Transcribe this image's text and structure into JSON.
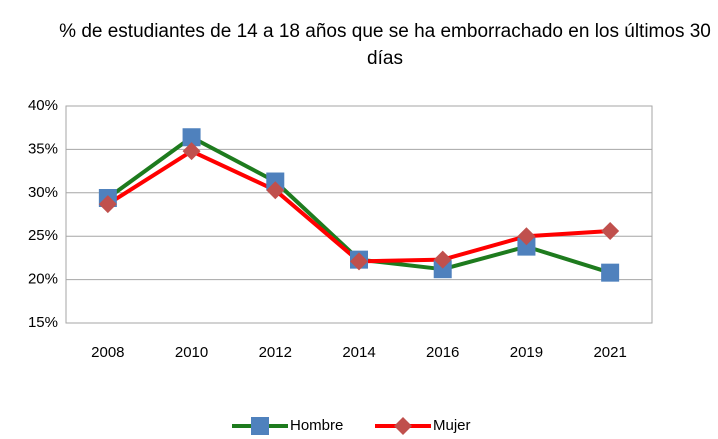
{
  "chart_data": {
    "type": "line",
    "title": "% de estudiantes de 14 a 18 años que se ha emborrachado en los últimos 30 días",
    "categories": [
      "2008",
      "2010",
      "2012",
      "2014",
      "2016",
      "2019",
      "2021"
    ],
    "series": [
      {
        "name": "Hombre",
        "color": "#1e7b1e",
        "marker_color": "#4f81bd",
        "marker": "square",
        "values": [
          29.4,
          36.4,
          31.3,
          22.3,
          21.2,
          23.8,
          20.8
        ]
      },
      {
        "name": "Mujer",
        "color": "#ff0000",
        "marker_color": "#c0504d",
        "marker": "diamond",
        "values": [
          28.7,
          34.8,
          30.3,
          22.1,
          22.3,
          25.0,
          25.6
        ]
      }
    ],
    "ylim": [
      15,
      40
    ],
    "yticks": [
      {
        "value": 15,
        "label": "15%"
      },
      {
        "value": 20,
        "label": "20%"
      },
      {
        "value": 25,
        "label": "25%"
      },
      {
        "value": 30,
        "label": "30%"
      },
      {
        "value": 35,
        "label": "35%"
      },
      {
        "value": 40,
        "label": "40%"
      }
    ],
    "grid": true,
    "legend": "bottom"
  }
}
